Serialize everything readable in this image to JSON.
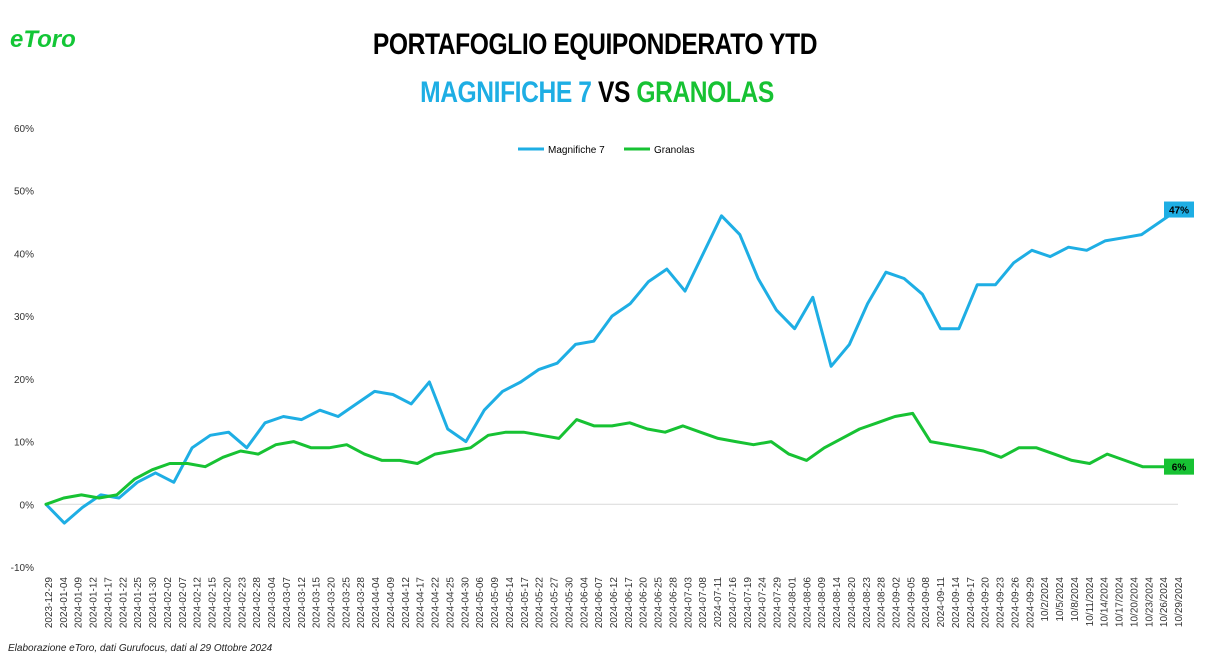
{
  "logo": {
    "text": "eToro",
    "color": "#13c636"
  },
  "title": {
    "line1": "PORTAFOGLIO EQUIPONDERATO YTD",
    "part_blue": "MAGNIFICHE 7",
    "part_vs": " VS ",
    "part_green": "GRANOLAS"
  },
  "footer": "Elaborazione eToro, dati Gurufocus, dati al 29 Ottobre 2024",
  "chart_data": {
    "type": "line",
    "ylim": [
      -10,
      60
    ],
    "y_ticks": [
      "-10%",
      "0%",
      "10%",
      "20%",
      "30%",
      "40%",
      "50%",
      "60%"
    ],
    "y_tick_values": [
      -10,
      0,
      10,
      20,
      30,
      40,
      50,
      60
    ],
    "x_tick_labels": [
      "2023-12-29",
      "2024-01-04",
      "2024-01-09",
      "2024-01-12",
      "2024-01-17",
      "2024-01-22",
      "2024-01-25",
      "2024-01-30",
      "2024-02-02",
      "2024-02-07",
      "2024-02-12",
      "2024-02-15",
      "2024-02-20",
      "2024-02-23",
      "2024-02-28",
      "2024-03-04",
      "2024-03-07",
      "2024-03-12",
      "2024-03-15",
      "2024-03-20",
      "2024-03-25",
      "2024-03-28",
      "2024-04-04",
      "2024-04-09",
      "2024-04-12",
      "2024-04-17",
      "2024-04-22",
      "2024-04-25",
      "2024-04-30",
      "2024-05-06",
      "2024-05-09",
      "2024-05-14",
      "2024-05-17",
      "2024-05-22",
      "2024-05-27",
      "2024-05-30",
      "2024-06-04",
      "2024-06-07",
      "2024-06-12",
      "2024-06-17",
      "2024-06-20",
      "2024-06-25",
      "2024-06-28",
      "2024-07-03",
      "2024-07-08",
      "2024-07-11",
      "2024-07-16",
      "2024-07-19",
      "2024-07-24",
      "2024-07-29",
      "2024-08-01",
      "2024-08-06",
      "2024-08-09",
      "2024-08-14",
      "2024-08-20",
      "2024-08-23",
      "2024-08-28",
      "2024-09-02",
      "2024-09-05",
      "2024-09-08",
      "2024-09-11",
      "2024-09-14",
      "2024-09-17",
      "2024-09-20",
      "2024-09-23",
      "2024-09-26",
      "2024-09-29",
      "10/2/2024",
      "10/5/2024",
      "10/8/2024",
      "10/11/2024",
      "10/14/2024",
      "10/17/2024",
      "10/20/2024",
      "10/23/2024",
      "10/26/2024",
      "10/29/2024"
    ],
    "legend_position": "top-center",
    "grid": false,
    "series": [
      {
        "name": "Magnifiche 7",
        "color": "#1eaee4",
        "end_label": "47%",
        "values": [
          0,
          -3,
          -0.5,
          1.5,
          1,
          3.5,
          5,
          3.5,
          9,
          11,
          11.5,
          9,
          13,
          14,
          13.5,
          15,
          14,
          16,
          18,
          17.5,
          16,
          19.5,
          12,
          10,
          15,
          18,
          19.5,
          21.5,
          22.5,
          25.5,
          26,
          30,
          32,
          35.5,
          37.5,
          34,
          40,
          46,
          43,
          36,
          31,
          28,
          33,
          22,
          25.5,
          32,
          37,
          36,
          33.5,
          28,
          28,
          35,
          35,
          38.5,
          40.5,
          39.5,
          41,
          40.5,
          42,
          42.5,
          43,
          45,
          47
        ]
      },
      {
        "name": "Granolas",
        "color": "#17c233",
        "end_label": "6%",
        "values": [
          0,
          1,
          1.5,
          1,
          1.5,
          4,
          5.5,
          6.5,
          6.5,
          6,
          7.5,
          8.5,
          8,
          9.5,
          10,
          9,
          9,
          9.5,
          8,
          7,
          7,
          6.5,
          8,
          8.5,
          9,
          11,
          11.5,
          11.5,
          11,
          10.5,
          13.5,
          12.5,
          12.5,
          13,
          12,
          11.5,
          12.5,
          11.5,
          10.5,
          10,
          9.5,
          10,
          8,
          7,
          9,
          10.5,
          12,
          13,
          14,
          14.5,
          10,
          9.5,
          9,
          8.5,
          7.5,
          9,
          9,
          8,
          7,
          6.5,
          8,
          7,
          6,
          6,
          6
        ]
      }
    ]
  }
}
